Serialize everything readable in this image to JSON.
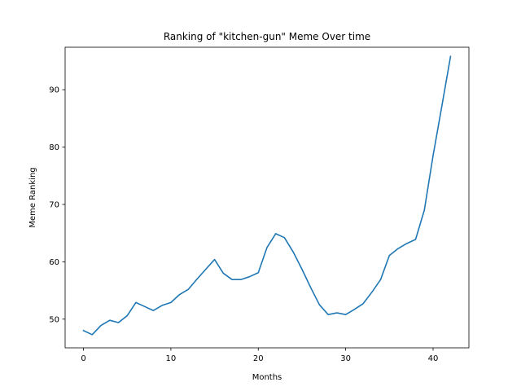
{
  "chart_data": {
    "type": "line",
    "title": "Ranking of \"kitchen-gun\" Meme Over time",
    "xlabel": "Months",
    "ylabel": "Meme Ranking",
    "xlim": [
      -2.1,
      44.1
    ],
    "ylim": [
      45.0,
      97.4
    ],
    "xticks": [
      0,
      10,
      20,
      30,
      40
    ],
    "yticks": [
      50,
      60,
      70,
      80,
      90
    ],
    "grid": false,
    "series": [
      {
        "color": "#1f77b4",
        "x": [
          0,
          1,
          2,
          3,
          4,
          5,
          6,
          7,
          8,
          9,
          10,
          11,
          12,
          13,
          14,
          15,
          16,
          17,
          18,
          19,
          20,
          21,
          22,
          23,
          24,
          25,
          26,
          27,
          28,
          29,
          30,
          31,
          32,
          33,
          34,
          35,
          36,
          37,
          38,
          39,
          40,
          41,
          42
        ],
        "y": [
          48.0,
          47.3,
          48.9,
          49.8,
          49.4,
          50.6,
          52.9,
          52.2,
          51.5,
          52.4,
          52.9,
          54.3,
          55.2,
          57.0,
          58.7,
          60.4,
          58.0,
          56.9,
          56.9,
          57.4,
          58.1,
          62.5,
          64.9,
          64.2,
          61.7,
          58.7,
          55.5,
          52.5,
          50.8,
          51.1,
          50.8,
          51.7,
          52.7,
          54.7,
          56.9,
          61.1,
          62.3,
          63.2,
          63.9,
          69.0,
          78.5,
          87.1,
          95.8
        ]
      }
    ]
  }
}
